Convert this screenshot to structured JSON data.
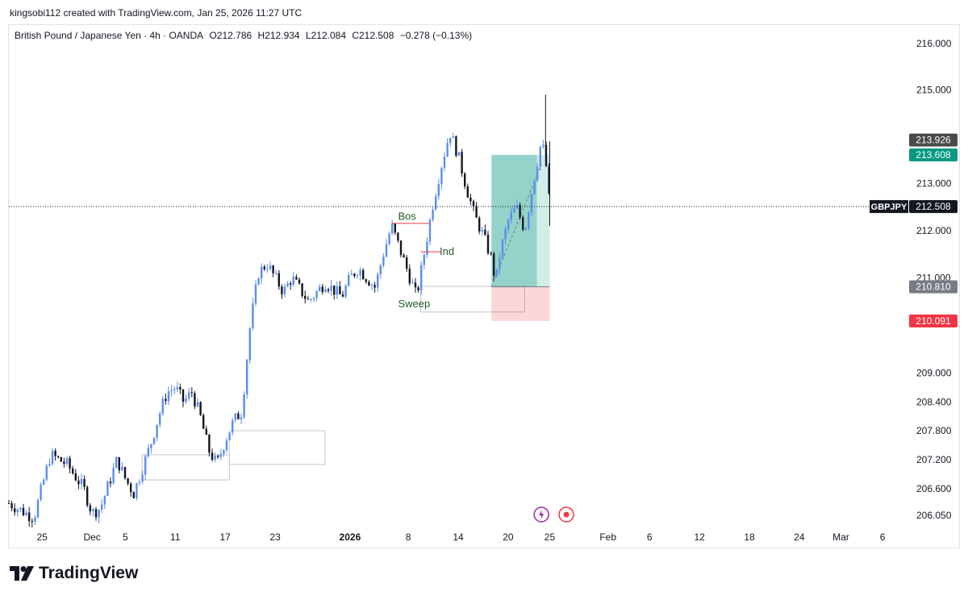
{
  "header": {
    "credit": "kingsobi112 created with TradingView.com, Jan 25, 2026 11:27 UTC"
  },
  "legend": {
    "symbol": "British Pound / Japanese Yen · 4h · OANDA",
    "open": "O212.786",
    "high": "H212.934",
    "low": "L212.084",
    "close": "C212.508",
    "change": "−0.278 (−0.13%)"
  },
  "footer": {
    "brand": "TradingView"
  },
  "colors": {
    "bull": "#5b8def",
    "bear": "#131722",
    "target": "#089981",
    "stop": "#f23645",
    "annotation": "#1e5f2e"
  },
  "chart_data": {
    "type": "candlestick",
    "symbol": "GBPJPY",
    "timeframe": "4h",
    "y_scale": "log",
    "ylim": [
      205.8,
      216.4
    ],
    "y_ticks": [
      "216.000",
      "215.000",
      "213.000",
      "212.000",
      "211.000",
      "209.000",
      "208.400",
      "207.800",
      "207.200",
      "206.600",
      "206.050"
    ],
    "x_ticks": [
      {
        "label": "25",
        "date": "2025-11-25"
      },
      {
        "label": "Dec",
        "date": "2025-12-01"
      },
      {
        "label": "5",
        "date": "2025-12-05"
      },
      {
        "label": "11",
        "date": "2025-12-11"
      },
      {
        "label": "17",
        "date": "2025-12-17"
      },
      {
        "label": "23",
        "date": "2025-12-23"
      },
      {
        "label": "2026",
        "date": "2026-01-01",
        "bold": true
      },
      {
        "label": "8",
        "date": "2026-01-08"
      },
      {
        "label": "14",
        "date": "2026-01-14"
      },
      {
        "label": "20",
        "date": "2026-01-20"
      },
      {
        "label": "25",
        "date": "2026-01-25"
      },
      {
        "label": "Feb",
        "date": "2026-02-01"
      },
      {
        "label": "6",
        "date": "2026-02-06"
      },
      {
        "label": "12",
        "date": "2026-02-12"
      },
      {
        "label": "18",
        "date": "2026-02-18"
      },
      {
        "label": "24",
        "date": "2026-02-24"
      },
      {
        "label": "Mar",
        "date": "2026-03-01"
      },
      {
        "label": "6",
        "date": "2026-03-06"
      }
    ],
    "x_start": "2025-11-21",
    "x_end": "2026-03-09",
    "path": [
      {
        "d": "2025-11-21",
        "p": 206.3
      },
      {
        "d": "2025-11-24",
        "p": 206.0
      },
      {
        "d": "2025-11-26",
        "p": 207.3
      },
      {
        "d": "2025-11-28",
        "p": 207.1
      },
      {
        "d": "2025-11-30",
        "p": 206.6
      },
      {
        "d": "2025-12-01",
        "p": 206.1
      },
      {
        "d": "2025-12-02",
        "p": 206.2
      },
      {
        "d": "2025-12-04",
        "p": 207.2
      },
      {
        "d": "2025-12-05",
        "p": 206.8
      },
      {
        "d": "2025-12-06",
        "p": 206.5
      },
      {
        "d": "2025-12-07",
        "p": 207.0
      },
      {
        "d": "2025-12-08",
        "p": 207.5
      },
      {
        "d": "2025-12-09",
        "p": 208.1
      },
      {
        "d": "2025-12-10",
        "p": 208.6
      },
      {
        "d": "2025-12-11",
        "p": 208.7
      },
      {
        "d": "2025-12-12",
        "p": 208.4
      },
      {
        "d": "2025-12-13",
        "p": 208.6
      },
      {
        "d": "2025-12-14",
        "p": 208.1
      },
      {
        "d": "2025-12-15",
        "p": 207.4
      },
      {
        "d": "2025-12-16",
        "p": 207.1
      },
      {
        "d": "2025-12-17",
        "p": 207.6
      },
      {
        "d": "2025-12-18",
        "p": 208.0
      },
      {
        "d": "2025-12-19",
        "p": 208.2
      },
      {
        "d": "2025-12-20",
        "p": 210.0
      },
      {
        "d": "2025-12-21",
        "p": 211.1
      },
      {
        "d": "2025-12-22",
        "p": 211.3
      },
      {
        "d": "2025-12-23",
        "p": 211.0
      },
      {
        "d": "2025-12-24",
        "p": 210.7
      },
      {
        "d": "2025-12-25",
        "p": 211.0
      },
      {
        "d": "2025-12-27",
        "p": 210.5
      },
      {
        "d": "2025-12-29",
        "p": 210.9
      },
      {
        "d": "2025-12-31",
        "p": 210.6
      },
      {
        "d": "2026-01-01",
        "p": 211.0
      },
      {
        "d": "2026-01-02",
        "p": 211.2
      },
      {
        "d": "2026-01-03",
        "p": 211.0
      },
      {
        "d": "2026-01-04",
        "p": 210.8
      },
      {
        "d": "2026-01-05",
        "p": 211.5
      },
      {
        "d": "2026-01-06",
        "p": 212.1
      },
      {
        "d": "2026-01-07",
        "p": 211.6
      },
      {
        "d": "2026-01-08",
        "p": 211.1
      },
      {
        "d": "2026-01-09",
        "p": 210.6
      },
      {
        "d": "2026-01-10",
        "p": 211.6
      },
      {
        "d": "2026-01-11",
        "p": 212.6
      },
      {
        "d": "2026-01-12",
        "p": 213.4
      },
      {
        "d": "2026-01-13",
        "p": 214.1
      },
      {
        "d": "2026-01-14",
        "p": 213.6
      },
      {
        "d": "2026-01-15",
        "p": 212.9
      },
      {
        "d": "2026-01-16",
        "p": 212.3
      },
      {
        "d": "2026-01-17",
        "p": 211.9
      },
      {
        "d": "2026-01-18",
        "p": 211.4
      },
      {
        "d": "2026-01-18T12",
        "p": 210.9
      },
      {
        "d": "2026-01-19",
        "p": 211.5
      },
      {
        "d": "2026-01-20",
        "p": 212.2
      },
      {
        "d": "2026-01-21",
        "p": 212.5
      },
      {
        "d": "2026-01-22",
        "p": 212.0
      },
      {
        "d": "2026-01-23",
        "p": 213.0
      },
      {
        "d": "2026-01-24",
        "p": 213.9
      },
      {
        "d": "2026-01-24T12",
        "p": 213.5
      },
      {
        "d": "2026-01-25",
        "p": 212.508
      }
    ],
    "current_price": {
      "label": "GBPJPY",
      "value": "212.508"
    },
    "price_tags": [
      {
        "value": "213.926",
        "price": 213.926,
        "color": "#4a4a4a"
      },
      {
        "value": "213.608",
        "price": 213.608,
        "color": "#089981"
      },
      {
        "value": "210.810",
        "price": 210.81,
        "color": "#787b86"
      },
      {
        "value": "210.091",
        "price": 210.091,
        "color": "#f23645"
      }
    ],
    "position": {
      "entry": 210.81,
      "target": 213.608,
      "stop": 210.091,
      "start": "2026-01-18",
      "end": "2026-01-25"
    },
    "annotations": [
      {
        "text": "Bos",
        "date": "2026-01-06",
        "price": 212.3
      },
      {
        "text": "Ind",
        "date": "2026-01-11",
        "price": 211.55
      },
      {
        "text": "Sweep",
        "date": "2026-01-06",
        "price": 210.45
      }
    ]
  }
}
